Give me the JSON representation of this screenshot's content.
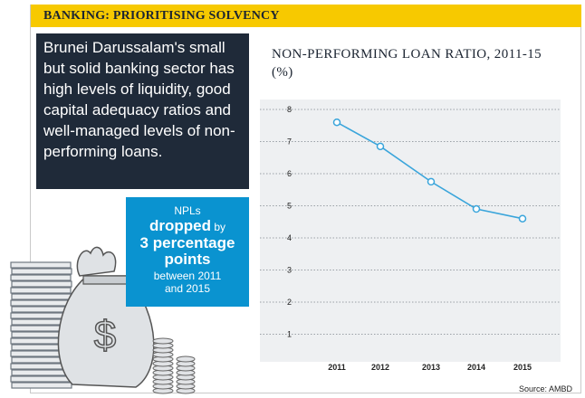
{
  "header": {
    "title": "BANKING: PRIORITISING SOLVENCY"
  },
  "intro": {
    "text": "Brunei Darussalam's small but solid banking sector has high levels of liquidity, good capital adequacy ratios and well-managed levels of non-performing loans."
  },
  "callout": {
    "line1": "NPLs",
    "line2a": "dropped",
    "line2b": " by",
    "line3": "3 percentage",
    "line4": "points",
    "line5": "between 2011",
    "line6": "and 2015"
  },
  "source": "Source: AMBD",
  "colors": {
    "accent": "#f7c900",
    "navy": "#1f2a39",
    "blue": "#0a93d0",
    "line": "#3aa5db"
  },
  "chart_data": {
    "type": "line",
    "title": "NON-PERFORMING LOAN RATIO, 2011-15 (%)",
    "x": [
      "2011",
      "2012",
      "2013",
      "2014",
      "2015"
    ],
    "series": [
      {
        "values": [
          7.6,
          6.85,
          5.75,
          4.9,
          4.6
        ]
      }
    ],
    "y_ticks": [
      "1",
      "2",
      "3",
      "4",
      "5",
      "6",
      "7",
      "8"
    ],
    "ylim": [
      0,
      8
    ],
    "xlabel": "",
    "ylabel": "",
    "grid": "dotted horizontal"
  }
}
